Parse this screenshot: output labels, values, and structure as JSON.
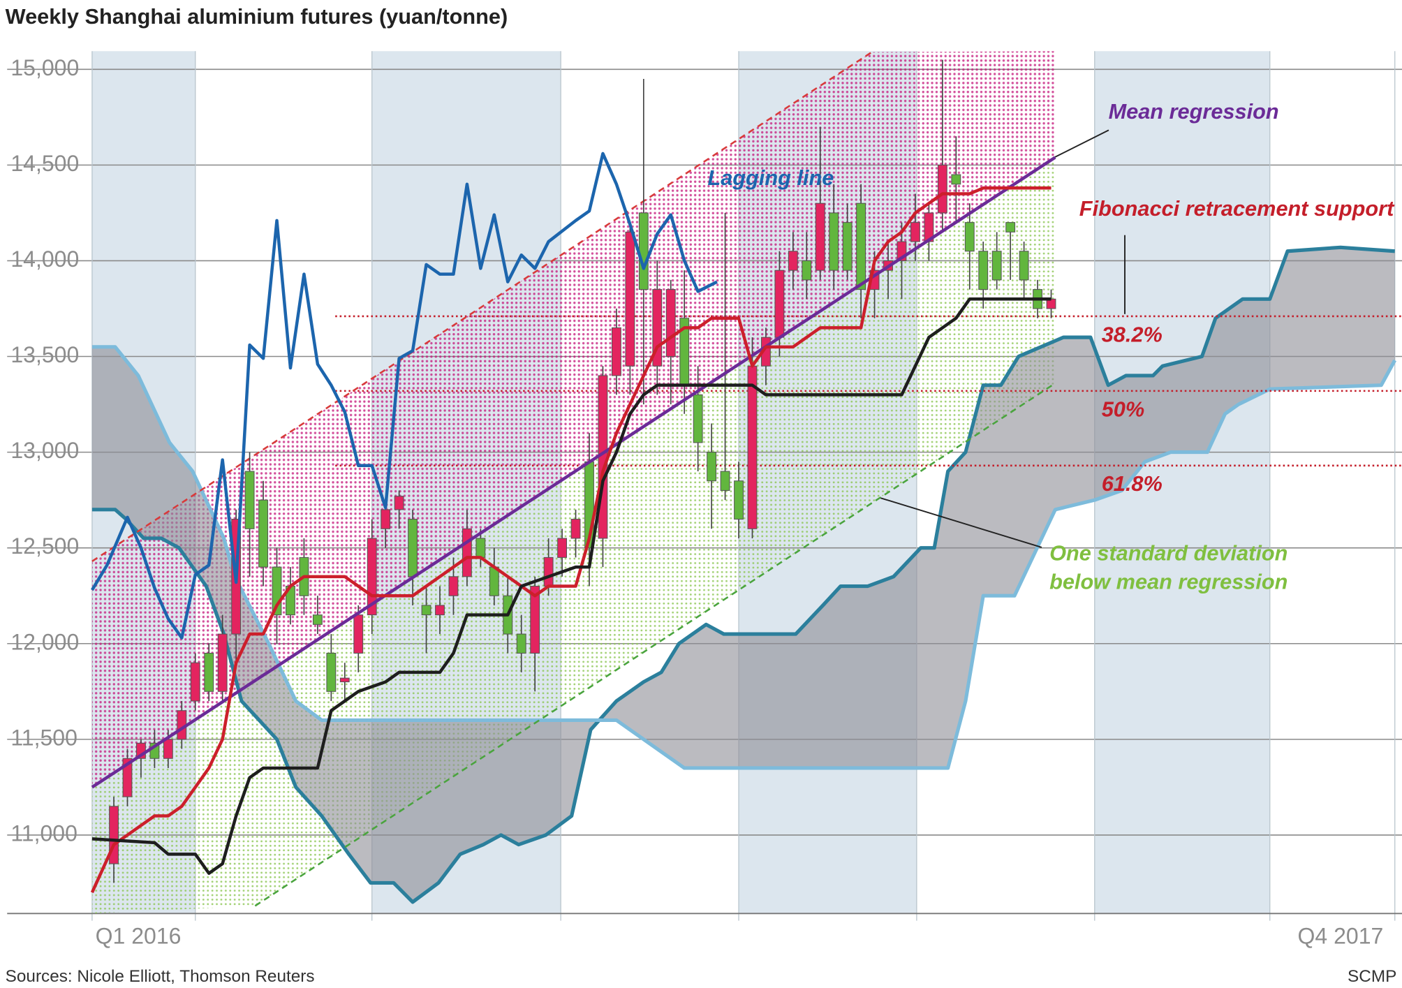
{
  "chart_data": {
    "type": "candlestick",
    "title": "Weekly Shanghai aluminium futures (yuan/tonne)",
    "source": "Sources: Nicole Elliott, Thomson Reuters",
    "credit": "SCMP",
    "xlim": [
      -1.6,
      94.3
    ],
    "ylim": [
      10590,
      15095
    ],
    "yticks": [
      {
        "value": 11000,
        "label": "11,000"
      },
      {
        "value": 11500,
        "label": "11,500"
      },
      {
        "value": 12000,
        "label": "12,000"
      },
      {
        "value": 12500,
        "label": "12,500"
      },
      {
        "value": 13000,
        "label": "13,000"
      },
      {
        "value": 13500,
        "label": "13,500"
      },
      {
        "value": 14000,
        "label": "14,000"
      },
      {
        "value": 14500,
        "label": "14,500"
      },
      {
        "value": 15000,
        "label": "15,000"
      }
    ],
    "xticks": [
      {
        "value": 1.8,
        "label": "Q1 2016"
      },
      {
        "value": 90.3,
        "label": "Q4 2017"
      }
    ],
    "period_edges": [
      -1.6,
      6.0,
      19.0,
      32.9,
      46.0,
      59.1,
      72.2,
      85.1,
      94.3
    ],
    "shaded_periods": [
      [
        -1.6,
        6.0
      ],
      [
        19.0,
        32.9
      ],
      [
        46.0,
        59.1
      ],
      [
        72.2,
        85.1
      ]
    ],
    "grid": true,
    "up_color": "#e3245f",
    "down_color": "#62b63e",
    "candles": {
      "open": [
        10850,
        11200,
        11400,
        11480,
        11400,
        11500,
        11700,
        11950,
        11750,
        12050,
        12900,
        12750,
        12400,
        12300,
        12450,
        12150,
        11950,
        11800,
        11950,
        12150,
        12600,
        12700,
        12650,
        12200,
        12150,
        12250,
        12350,
        12550,
        12400,
        12250,
        12050,
        11950,
        12300,
        12450,
        12550,
        12950,
        12550,
        13400,
        13450,
        14250,
        13450,
        13500,
        13700,
        13300,
        13000,
        12900,
        12850,
        12600,
        13450,
        13600,
        13950,
        14000,
        13950,
        14250,
        14200,
        14300,
        13850,
        13950,
        14000,
        14100,
        14100,
        14250,
        14450,
        14200,
        14050,
        14050,
        14200,
        14050,
        13850,
        13750
      ],
      "high": [
        11200,
        11450,
        11500,
        11550,
        11550,
        11700,
        11950,
        12000,
        12150,
        12700,
        13000,
        12850,
        12500,
        12400,
        12550,
        12250,
        12050,
        11900,
        12200,
        12650,
        12750,
        12800,
        12700,
        12300,
        12300,
        12450,
        12700,
        12600,
        12500,
        12350,
        12150,
        12350,
        12550,
        12600,
        12700,
        13100,
        13450,
        13750,
        14200,
        14950,
        14000,
        13900,
        13950,
        13450,
        13150,
        14250,
        12950,
        13600,
        13650,
        14050,
        14150,
        14150,
        14700,
        14400,
        14300,
        14400,
        14050,
        14100,
        14200,
        14350,
        14300,
        15050,
        14650,
        14300,
        14100,
        14150,
        14200,
        14100,
        13900,
        13850
      ],
      "low": [
        10750,
        11150,
        11300,
        11350,
        11350,
        11450,
        11650,
        11700,
        11700,
        11900,
        12350,
        12300,
        12000,
        12100,
        12150,
        12050,
        11700,
        11700,
        11850,
        12050,
        12500,
        12600,
        12200,
        11950,
        12050,
        12150,
        12300,
        12400,
        12200,
        11950,
        11850,
        11750,
        12250,
        12350,
        12450,
        12300,
        12400,
        13300,
        13300,
        13250,
        13300,
        13250,
        13200,
        12900,
        12600,
        12750,
        12550,
        12550,
        13350,
        13500,
        13850,
        13800,
        13900,
        13850,
        13900,
        13700,
        13700,
        13800,
        13800,
        14000,
        14000,
        14150,
        14200,
        13850,
        13750,
        13850,
        13900,
        13800,
        13700,
        13700
      ],
      "close": [
        11150,
        11400,
        11480,
        11400,
        11500,
        11650,
        11900,
        11750,
        12050,
        12650,
        12600,
        12400,
        12150,
        12150,
        12250,
        12100,
        11750,
        11820,
        12150,
        12550,
        12700,
        12770,
        12350,
        12150,
        12200,
        12350,
        12600,
        12450,
        12250,
        12050,
        11950,
        12300,
        12450,
        12550,
        12650,
        12500,
        13400,
        13650,
        14150,
        13850,
        13850,
        13850,
        13350,
        13050,
        12850,
        12800,
        12650,
        13450,
        13600,
        13950,
        14050,
        13900,
        14300,
        13950,
        13950,
        13850,
        13950,
        14000,
        14100,
        14200,
        14250,
        14500,
        14400,
        14050,
        13850,
        13900,
        14150,
        13900,
        13750,
        13800
      ]
    },
    "lines": [
      {
        "name": "Lagging line",
        "color": "#1c65ad",
        "x": [
          -1.6,
          -0.5,
          1,
          2,
          3,
          4,
          5,
          6,
          7,
          8,
          9,
          10,
          11,
          12,
          13,
          14,
          15,
          16,
          17,
          18,
          19,
          20,
          21,
          22,
          23,
          24,
          25,
          26,
          27,
          28,
          29,
          30,
          31,
          32,
          34,
          35,
          36,
          37,
          38,
          39,
          40,
          41,
          42,
          43,
          44.4
        ],
        "values": [
          12280,
          12410,
          12660,
          12500,
          12290,
          12130,
          12030,
          12360,
          12410,
          12960,
          12320,
          13560,
          13490,
          14210,
          13440,
          13930,
          13460,
          13350,
          13210,
          12930,
          12930,
          12710,
          13490,
          13530,
          13980,
          13930,
          13930,
          14400,
          13960,
          14240,
          13890,
          14030,
          13960,
          14100,
          14210,
          14260,
          14560,
          14400,
          14190,
          13960,
          14140,
          14240,
          14000,
          13840,
          13890
        ]
      },
      {
        "color": "#cc1f2b",
        "x": [
          -1.6,
          0,
          1,
          2,
          3,
          4,
          5,
          6,
          7,
          8,
          9,
          10,
          11,
          12,
          13,
          14,
          15,
          16,
          17,
          18,
          19,
          20,
          21,
          22,
          23,
          24,
          25,
          26,
          27,
          28,
          29,
          30,
          31,
          32,
          33,
          34,
          35,
          36,
          37,
          38,
          39,
          40,
          41,
          42,
          43,
          44,
          45,
          46,
          47,
          48,
          49,
          50,
          51,
          52,
          53,
          54,
          55,
          56,
          57,
          58,
          59,
          60,
          61,
          62,
          63,
          64,
          65,
          66,
          67,
          68,
          69
        ],
        "values": [
          10700,
          10950,
          11000,
          11050,
          11100,
          11100,
          11150,
          11250,
          11350,
          11500,
          11900,
          12050,
          12050,
          12200,
          12300,
          12350,
          12350,
          12350,
          12350,
          12300,
          12250,
          12250,
          12250,
          12250,
          12300,
          12350,
          12400,
          12450,
          12450,
          12400,
          12350,
          12300,
          12250,
          12300,
          12300,
          12300,
          12550,
          12900,
          13100,
          13250,
          13400,
          13550,
          13600,
          13650,
          13650,
          13700,
          13700,
          13700,
          13450,
          13550,
          13550,
          13550,
          13600,
          13650,
          13650,
          13650,
          13650,
          14000,
          14100,
          14150,
          14250,
          14300,
          14350,
          14350,
          14350,
          14380,
          14380,
          14380,
          14380,
          14380,
          14380
        ]
      },
      {
        "color": "#1e1e1e",
        "x": [
          -1.6,
          3,
          4,
          6,
          7,
          8,
          9,
          10,
          11,
          15,
          16,
          17,
          18,
          20,
          21,
          24,
          25,
          26,
          29,
          30,
          32,
          34,
          35,
          36,
          37,
          38,
          39,
          40,
          46,
          47,
          48,
          58,
          59,
          60,
          61,
          62,
          63,
          69
        ],
        "values": [
          10980,
          10960,
          10900,
          10900,
          10800,
          10850,
          11100,
          11300,
          11350,
          11350,
          11650,
          11700,
          11750,
          11800,
          11850,
          11850,
          11950,
          12150,
          12150,
          12300,
          12350,
          12400,
          12400,
          12850,
          13000,
          13200,
          13300,
          13350,
          13350,
          13350,
          13300,
          13300,
          13450,
          13600,
          13650,
          13700,
          13800,
          13800
        ]
      }
    ],
    "cloud": {
      "fill": "#8e8e96",
      "lines": [
        {
          "color": "#2b7f9c",
          "x": [
            -1.6,
            0.1,
            0.9,
            2.2,
            3.5,
            4.8,
            6.8,
            8.1,
            9.4,
            10.7,
            12.0,
            13.4,
            15.3,
            17.3,
            18.9,
            20.6,
            22.0,
            23.9,
            25.5,
            27.2,
            28.5,
            29.8,
            31.8,
            33.7,
            35.1,
            37.0,
            39.0,
            40.3,
            41.6,
            43.6,
            44.9,
            46.9,
            50.2,
            52.2,
            53.5,
            55.5,
            57.4,
            59.4,
            60.4,
            61.4,
            62.7,
            64.0,
            65.3,
            66.6,
            69.9,
            71.9,
            73.2,
            74.5,
            76.5,
            77.2,
            80.1,
            81.1,
            83.1,
            85.1,
            86.4,
            90.3,
            94.3
          ],
          "values": [
            12700,
            12700,
            12650,
            12550,
            12550,
            12500,
            12300,
            12050,
            11700,
            11600,
            11500,
            11250,
            11100,
            10900,
            10750,
            10750,
            10650,
            10750,
            10900,
            10950,
            11000,
            10950,
            11000,
            11100,
            11550,
            11700,
            11800,
            11850,
            12000,
            12100,
            12050,
            12050,
            12050,
            12200,
            12300,
            12300,
            12350,
            12500,
            12500,
            12900,
            13000,
            13350,
            13350,
            13500,
            13600,
            13600,
            13350,
            13400,
            13400,
            13450,
            13500,
            13700,
            13800,
            13800,
            14050,
            14070,
            14050
          ]
        },
        {
          "color": "#7dbbdb",
          "x": [
            -1.6,
            0.1,
            1.8,
            4.1,
            5.8,
            8.1,
            8.9,
            11.4,
            13.4,
            15.3,
            37.0,
            39.0,
            42.0,
            61.4,
            62.7,
            64.0,
            66.3,
            69.3,
            72.2,
            74.2,
            75.9,
            77.8,
            80.5,
            81.8,
            82.8,
            85.1,
            93.3,
            94.3
          ],
          "values": [
            13550,
            13550,
            13400,
            13050,
            12900,
            12550,
            12350,
            12000,
            11700,
            11600,
            11600,
            11500,
            11350,
            11350,
            11700,
            12250,
            12250,
            12700,
            12750,
            12800,
            12950,
            13000,
            13000,
            13200,
            13250,
            13330,
            13350,
            13480
          ]
        }
      ]
    },
    "regression": {
      "mean": {
        "name": "Mean regression",
        "color": "#6b2b97",
        "x": [
          -1.6,
          69.3
        ],
        "values": [
          11250,
          14540
        ]
      },
      "upper": {
        "color": "#d83a3a",
        "x": [
          -1.6,
          55.8
        ],
        "values": [
          12430,
          15090
        ]
      },
      "lower": {
        "name": [
          "One standard deviation",
          "below mean regression"
        ],
        "color": "#4aa43e",
        "x": [
          10.4,
          69.3
        ],
        "values": [
          10630,
          13360
        ]
      }
    },
    "fibonacci": {
      "name": "Fibonacci retracement support",
      "color": "#c41e2a",
      "x_start": 16.3,
      "values": [
        13710,
        13320,
        12930
      ],
      "labels": [
        "38.2%",
        "50%",
        "61.8%"
      ]
    }
  }
}
